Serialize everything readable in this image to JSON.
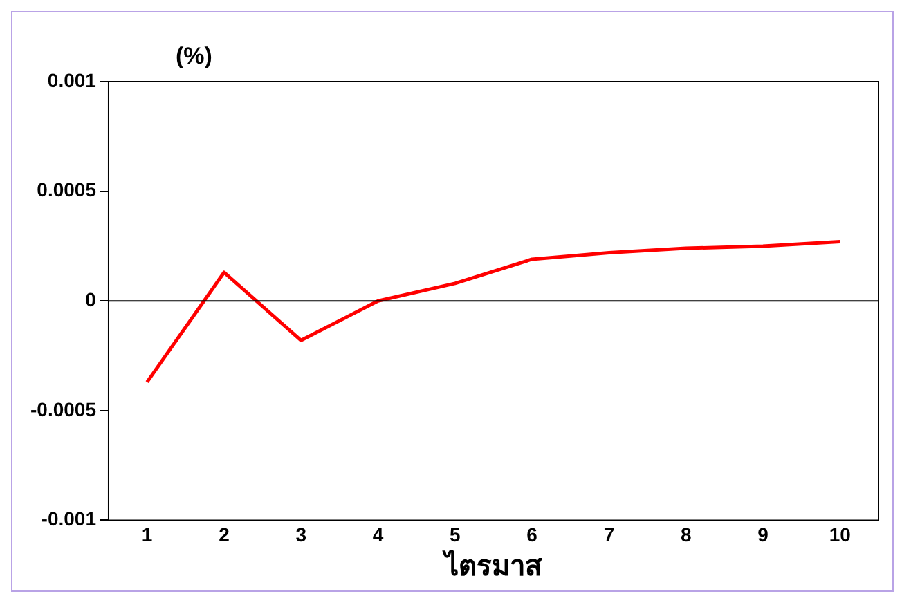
{
  "chart_data": {
    "type": "line",
    "ylabel": "(%)",
    "xlabel": "ไตรมาส",
    "categories": [
      "1",
      "2",
      "3",
      "4",
      "5",
      "6",
      "7",
      "8",
      "9",
      "10"
    ],
    "series": [
      {
        "color": "#ff0000",
        "values": [
          -0.00037,
          0.00013,
          -0.00018,
          0.0,
          8e-05,
          0.00019,
          0.00022,
          0.00024,
          0.00025,
          0.00027
        ]
      }
    ],
    "ylim": [
      -0.001,
      0.001
    ],
    "yticks": [
      -0.001,
      -0.0005,
      0,
      0.0005,
      0.001
    ],
    "ref_lines": [
      {
        "axis": "y",
        "value": 0,
        "color": "#000000"
      }
    ],
    "grid": false,
    "legend": false,
    "marker": "none",
    "line_style": "solid"
  }
}
